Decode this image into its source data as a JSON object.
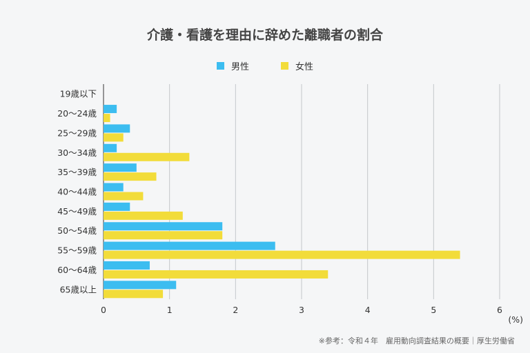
{
  "chart_data": {
    "type": "bar",
    "orientation": "horizontal",
    "title": "介護・看護を理由に辞めた離職者の割合",
    "xlabel": "(%)",
    "ylabel": "",
    "xlim": [
      0,
      6
    ],
    "x_ticks": [
      "0",
      "1",
      "2",
      "3",
      "4",
      "5",
      "6"
    ],
    "grid": true,
    "legend_position": "top-center",
    "categories": [
      "19歳以下",
      "20〜24歳",
      "25〜29歳",
      "30〜34歳",
      "35〜39歳",
      "40〜44歳",
      "45〜49歳",
      "50〜54歳",
      "55〜59歳",
      "60〜64歳",
      "65歳以上"
    ],
    "series": [
      {
        "name": "男性",
        "color": "#3cbdf0",
        "values": [
          0,
          0.2,
          0.4,
          0.2,
          0.5,
          0.3,
          0.4,
          1.8,
          2.6,
          0.7,
          1.1
        ]
      },
      {
        "name": "女性",
        "color": "#f2dc3a",
        "values": [
          0,
          0.1,
          0.3,
          1.3,
          0.8,
          0.6,
          1.2,
          1.8,
          5.4,
          3.4,
          0.9
        ]
      }
    ]
  },
  "footnote": "※参考：令和４年　雇用動向調査結果の概要｜厚生労働省"
}
